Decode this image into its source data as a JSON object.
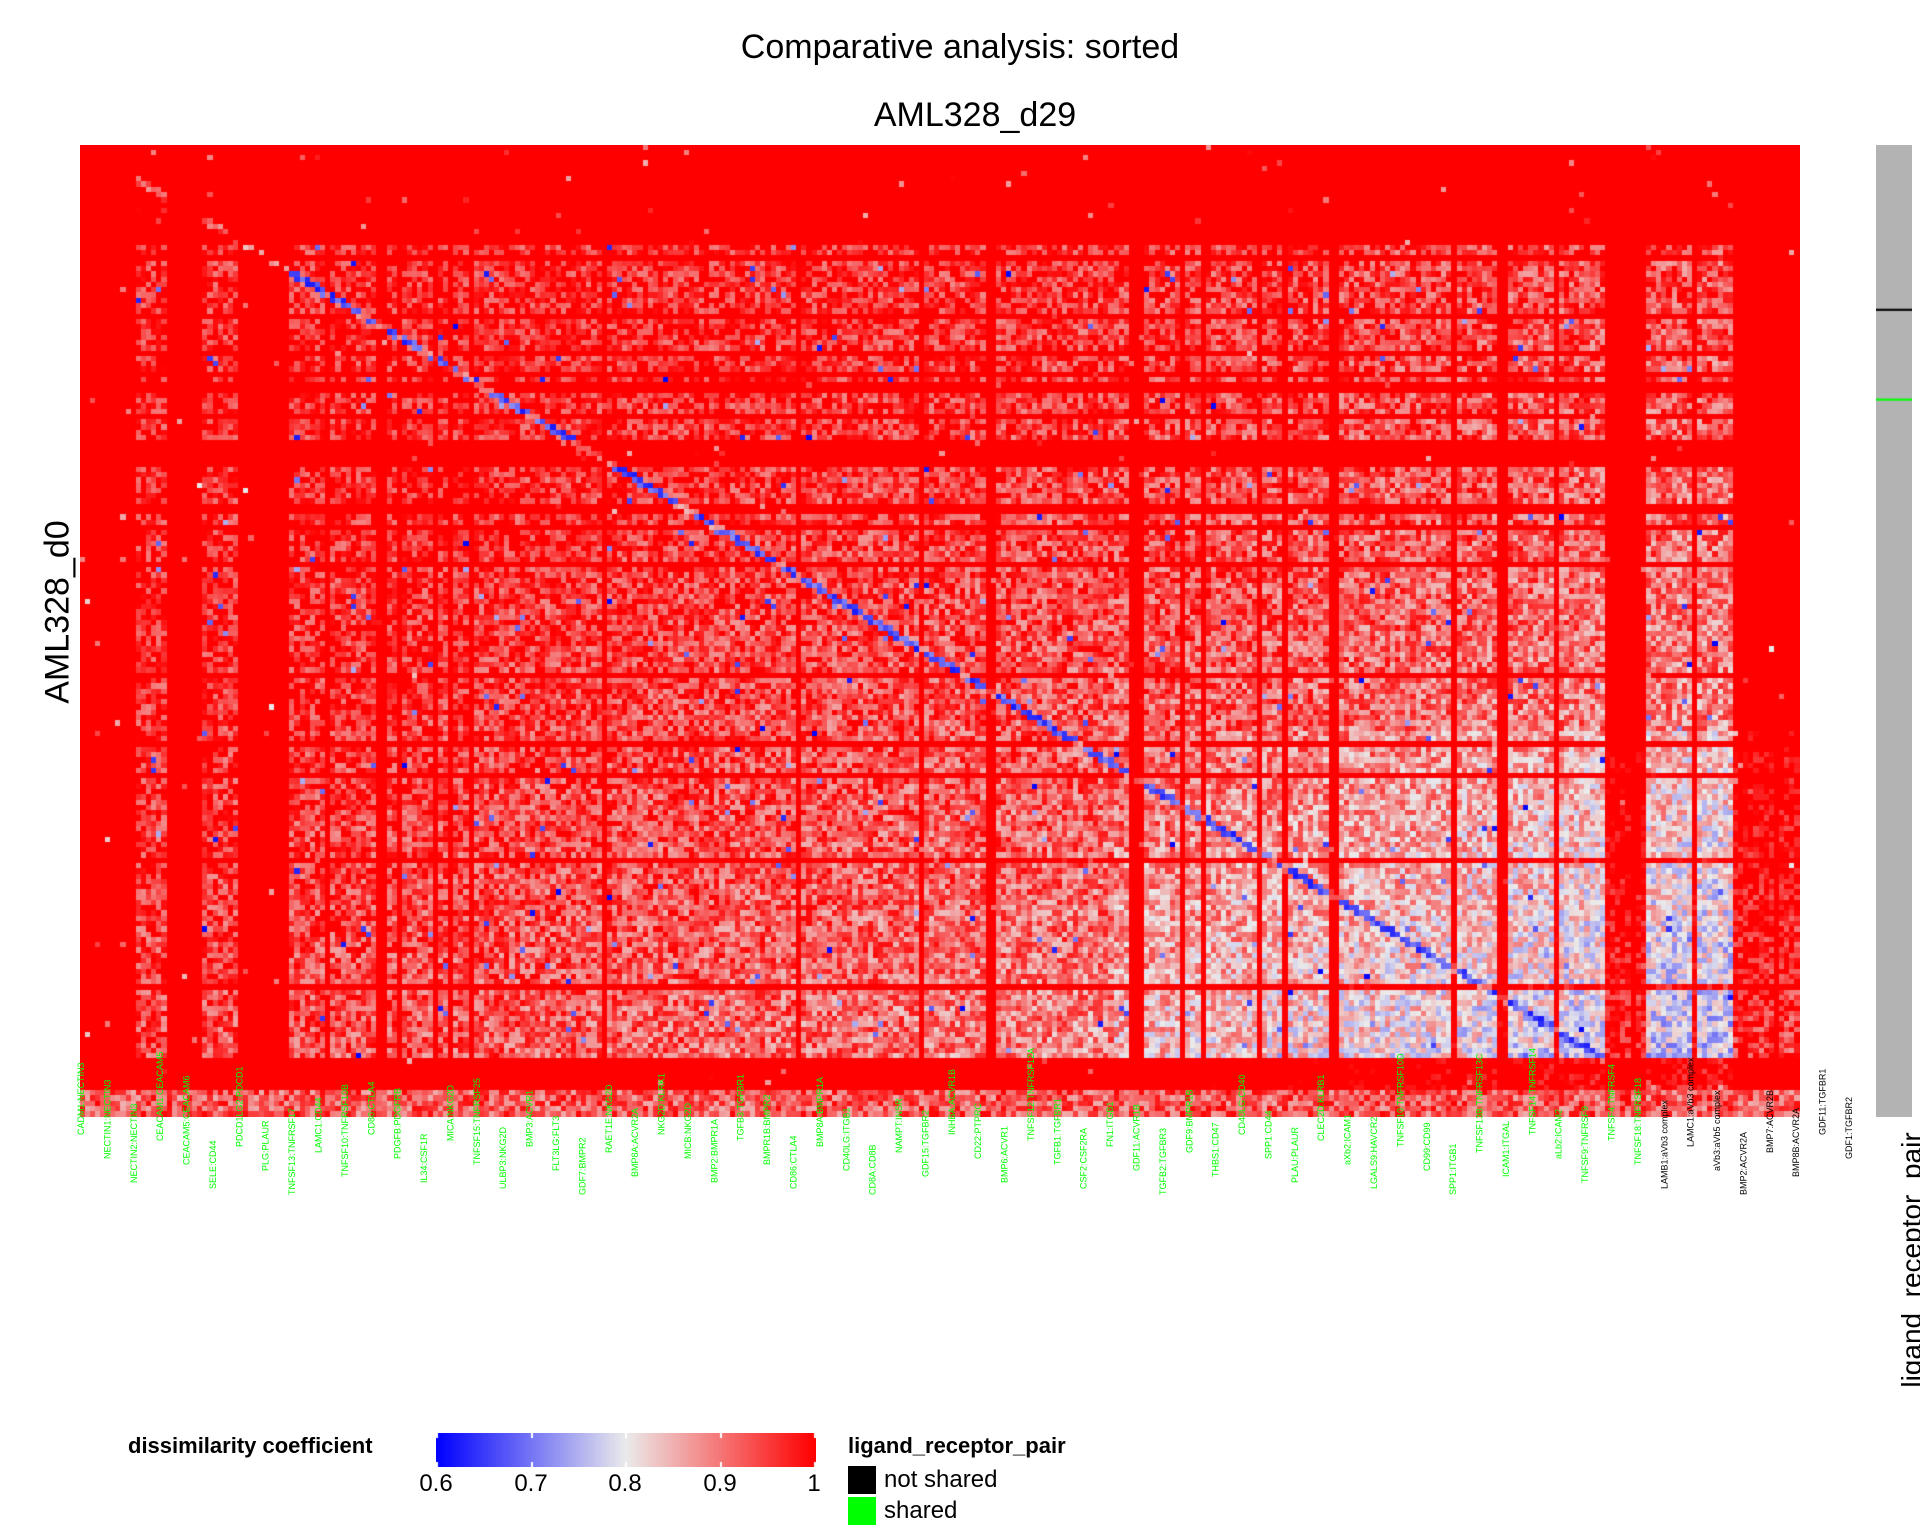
{
  "chart_data": {
    "type": "heatmap",
    "title": "Comparative analysis: sorted",
    "column_title": "AML328_d29",
    "row_title": "AML328_d0",
    "value_name": "dissimilarity coefficient",
    "color_scale": {
      "range": [
        0.6,
        1.0
      ],
      "ticks": [
        "0.6",
        "0.7",
        "0.8",
        "0.9",
        "1"
      ],
      "stops": [
        {
          "value": 0.6,
          "color": "#0000ff"
        },
        {
          "value": 0.8,
          "color": "#ebebeb"
        },
        {
          "value": 1.0,
          "color": "#ff0000"
        }
      ]
    },
    "annotation": {
      "name": "ligand_receptor_pair",
      "levels": [
        {
          "label": "not shared",
          "color": "#000000"
        },
        {
          "label": "shared",
          "color": "#00ff00"
        }
      ],
      "row_annotation_color": "#b3b3b3"
    },
    "columns": [
      "CADM1:NECTIN3",
      "NECTIN1:NECTIN3",
      "NECTIN2:NECTIN3",
      "CEACAM1:CEACAM5",
      "CEACAM5:CEACAM6",
      "SELE:CD44",
      "PDCD1LG2:PDCD1",
      "PLG:PLAUR",
      "TNFSF13:TNFRSF17",
      "LAMC1:CD44",
      "TNFSF10:TNFRSF10B",
      "CD80:CTLA4",
      "PDGFB:PDGFRB",
      "IL34:CSF1R",
      "MICA:NKG2D",
      "TNFSF15:TNFRSF25",
      "ULBP3:NKG2D",
      "BMP3:ACVR1",
      "FLT3LG:FLT3",
      "GDF7:BMPR2",
      "RAET1E:NKG2D",
      "BMP8A:ACVR2A",
      "NKG2D:KLRK1",
      "MICB:NKG2D",
      "BMP2:BMPR1A",
      "TGFB3:TGFBR1",
      "BMPR1B:BMPR2",
      "CD86:CTLA4",
      "BMP8A:BMPR1A",
      "CD40LG:ITGB1",
      "CD8A:CD8B",
      "NAMPT:INSR",
      "GDF15:TGFBR2",
      "INHBA:ACVR1B",
      "CD22:PTPRC",
      "BMP6:ACVR1",
      "TNFSF12:TNFRSF12A",
      "TGFB1:TGFBR1",
      "CSF2:CSF2RA",
      "FN1:ITGB1",
      "GDF11:ACVR1B",
      "TGFB2:TGFBR3",
      "GDF9:BMPR1B",
      "THBS1:CD47",
      "CD40LG:CD40",
      "SPP1:CD44",
      "PLAU:PLAUR",
      "CLEC2D:KLRB1",
      "aXb2:ICAM1",
      "LGALS9:HAVCR2",
      "TNFSF10:TNFRSF10D",
      "CD99:CD99",
      "SPP1:ITGB1",
      "TNFSF13B:TNFRSF13C",
      "ICAM1:ITGAL",
      "TNFSF14:TNFRSF14",
      "aLb2:ICAM2",
      "TNFSF9:TNFRSF9",
      "TNFSF4:TNFRSF4",
      "TNFSF18:TNFRSF18",
      "LAMB1:aVb3 complex",
      "LAMC1:aVb3 complex",
      "aVb3:aVb5 complex",
      "BMP2:ACVR2A",
      "BMP7:ACVR2B",
      "BMP8B:ACVR2A",
      "GDF11:TGFBR1",
      "GDF1:TGFBR2"
    ],
    "n_rows": 184,
    "n_cols": 336,
    "shared_columns": 324,
    "not_shared_rows": [
      31
    ],
    "shared_rows": [
      48
    ]
  }
}
